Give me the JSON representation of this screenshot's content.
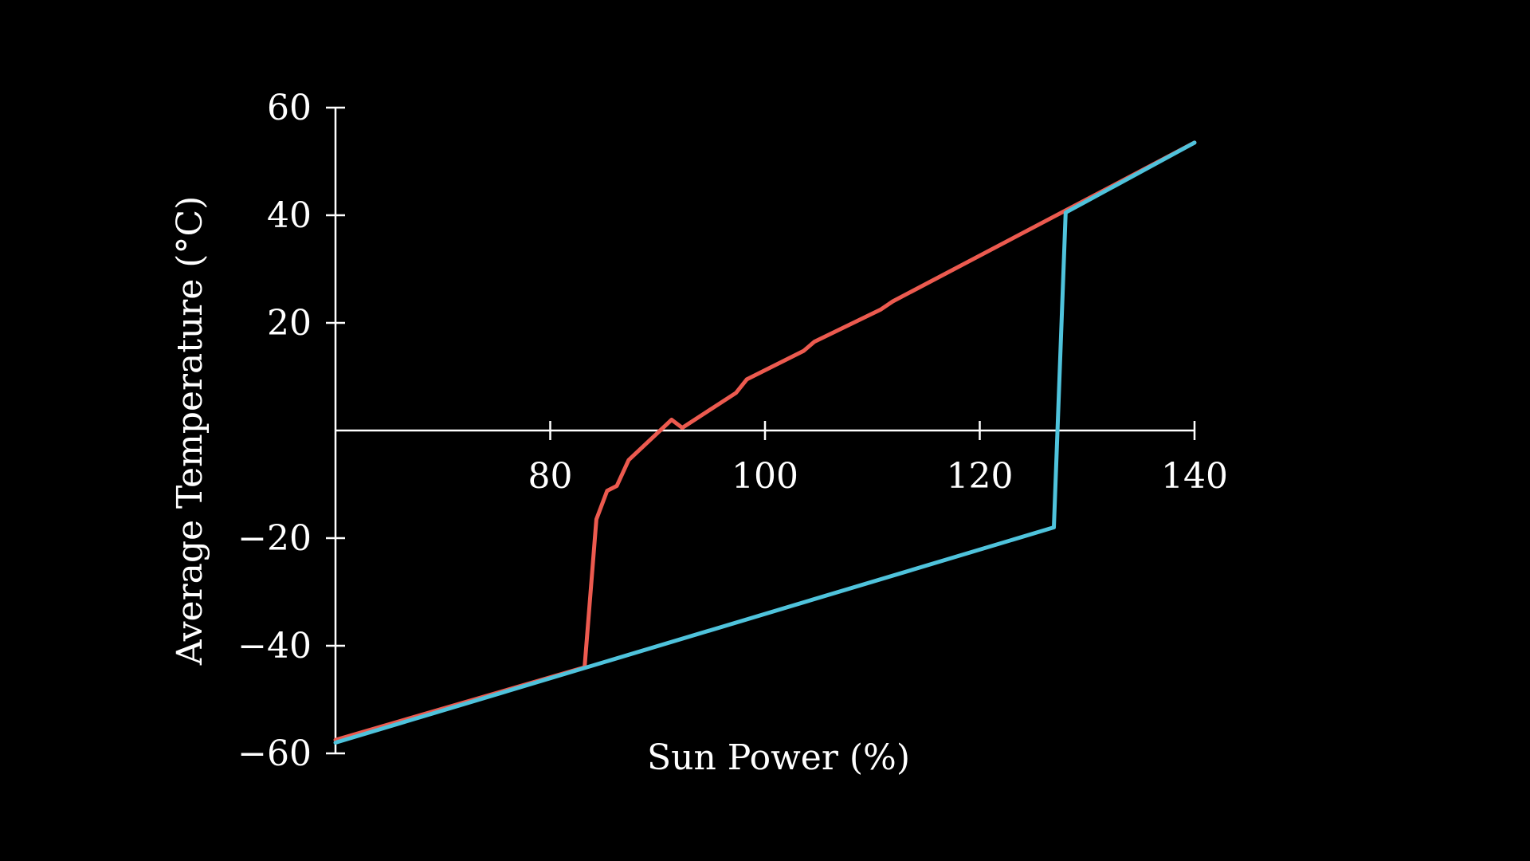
{
  "chart_data": {
    "type": "line",
    "xlabel": "Sun Power (%)",
    "ylabel": "Average Temperature (°C)",
    "xlim": [
      60,
      140
    ],
    "ylim": [
      -60,
      60
    ],
    "x_ticks": [
      80,
      100,
      120,
      140
    ],
    "x_tick_labels": [
      "80",
      "100",
      "120",
      "140"
    ],
    "y_ticks": [
      60,
      40,
      20,
      -20,
      -40,
      -60
    ],
    "y_tick_labels": [
      "60",
      "40",
      "20",
      "−20",
      "−40",
      "−60"
    ],
    "grid": false,
    "legend": "none",
    "series": [
      {
        "color": "#ec5a4f",
        "x": [
          60,
          83.2,
          84.3,
          85.3,
          86.2,
          87.3,
          91.3,
          92.3,
          97.3,
          98.3,
          103.6,
          104.6,
          110.8,
          111.9,
          140
        ],
        "y": [
          -57.5,
          -44,
          -16.5,
          -11.2,
          -10.3,
          -5.5,
          2,
          0.5,
          7,
          9.5,
          14.8,
          16.5,
          22.5,
          24,
          53.5
        ]
      },
      {
        "color": "#4fc3dc",
        "x": [
          60,
          126.9,
          128,
          140
        ],
        "y": [
          -58,
          -18,
          40.5,
          53.5
        ]
      }
    ]
  }
}
